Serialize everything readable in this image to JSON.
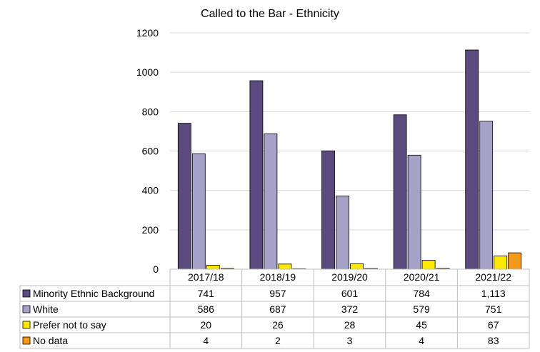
{
  "chart_data": {
    "type": "bar",
    "title": "Called to the Bar - Ethnicity",
    "categories": [
      "2017/18",
      "2018/19",
      "2019/20",
      "2020/21",
      "2021/22"
    ],
    "yticks": [
      "0",
      "200",
      "400",
      "600",
      "800",
      "1000",
      "1200"
    ],
    "ylim": [
      0,
      1200
    ],
    "grid": true,
    "legend": "data-table-below",
    "series": [
      {
        "name": "Minority Ethnic Background",
        "color": "#5b4a7e",
        "values": [
          741,
          957,
          601,
          784,
          1113
        ],
        "labels": [
          "741",
          "957",
          "601",
          "784",
          "1,113"
        ]
      },
      {
        "name": "White",
        "color": "#a6a1c6",
        "values": [
          586,
          687,
          372,
          579,
          751
        ],
        "labels": [
          "586",
          "687",
          "372",
          "579",
          "751"
        ]
      },
      {
        "name": "Prefer not to say",
        "color": "#ffe800",
        "values": [
          20,
          26,
          28,
          45,
          67
        ],
        "labels": [
          "20",
          "26",
          "28",
          "45",
          "67"
        ]
      },
      {
        "name": "No data",
        "color": "#f39a1c",
        "values": [
          4,
          2,
          3,
          4,
          83
        ],
        "labels": [
          "4",
          "2",
          "3",
          "4",
          "83"
        ]
      }
    ]
  }
}
